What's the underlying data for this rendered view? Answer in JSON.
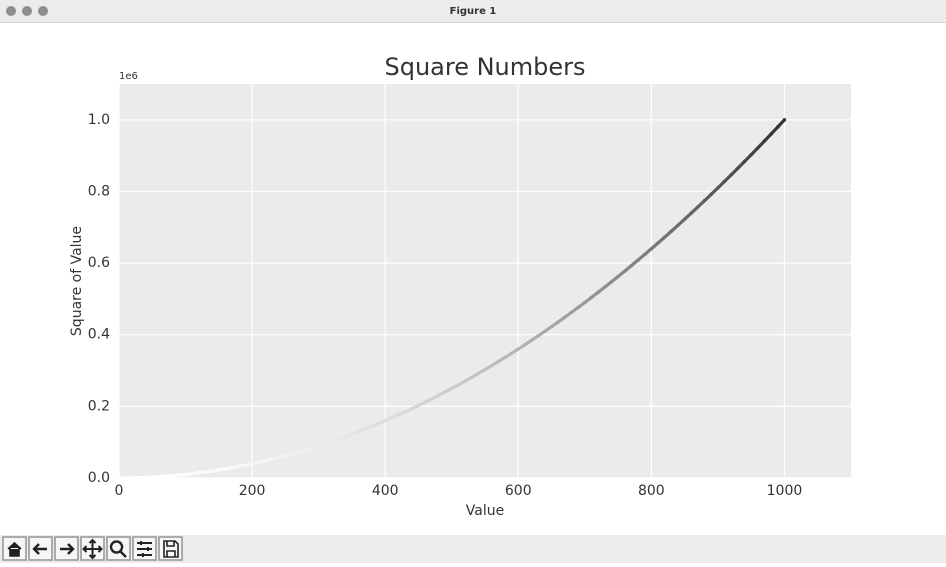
{
  "window": {
    "title": "Figure 1"
  },
  "chart_data": {
    "type": "scatter",
    "title": "Square Numbers",
    "xlabel": "Value",
    "ylabel": "Square of Value",
    "y_offset_label": "1e6",
    "colormap": "Greys",
    "grid": true,
    "xlim": [
      0,
      1100
    ],
    "xticks": [
      0,
      200,
      400,
      600,
      800,
      1000
    ],
    "ylim": [
      0,
      1100000
    ],
    "yticks": [
      {
        "value": 0,
        "label": "0.0"
      },
      {
        "value": 200000,
        "label": "0.2"
      },
      {
        "value": 400000,
        "label": "0.4"
      },
      {
        "value": 600000,
        "label": "0.6"
      },
      {
        "value": 800000,
        "label": "0.8"
      },
      {
        "value": 1000000,
        "label": "1.0"
      }
    ],
    "x": [
      0,
      10,
      20,
      30,
      40,
      50,
      60,
      70,
      80,
      90,
      100,
      110,
      120,
      130,
      140,
      150,
      160,
      170,
      180,
      190,
      200,
      210,
      220,
      230,
      240,
      250,
      260,
      270,
      280,
      290,
      300,
      310,
      320,
      330,
      340,
      350,
      360,
      370,
      380,
      390,
      400,
      410,
      420,
      430,
      440,
      450,
      460,
      470,
      480,
      490,
      500,
      510,
      520,
      530,
      540,
      550,
      560,
      570,
      580,
      590,
      600,
      610,
      620,
      630,
      640,
      650,
      660,
      670,
      680,
      690,
      700,
      710,
      720,
      730,
      740,
      750,
      760,
      770,
      780,
      790,
      800,
      810,
      820,
      830,
      840,
      850,
      860,
      870,
      880,
      890,
      900,
      910,
      920,
      930,
      940,
      950,
      960,
      970,
      980,
      990,
      1000
    ],
    "values": [
      0,
      100,
      400,
      900,
      1600,
      2500,
      3600,
      4900,
      6400,
      8100,
      10000,
      12100,
      14400,
      16900,
      19600,
      22500,
      25600,
      28900,
      32400,
      36100,
      40000,
      44100,
      48400,
      52900,
      57600,
      62500,
      67600,
      72900,
      78400,
      84100,
      90000,
      96100,
      102400,
      108900,
      115600,
      122500,
      129600,
      136900,
      144400,
      152100,
      160000,
      168100,
      176400,
      184900,
      193600,
      202500,
      211600,
      220900,
      230400,
      240100,
      250000,
      260100,
      270400,
      280900,
      291600,
      302500,
      313600,
      324900,
      336400,
      348100,
      360000,
      372100,
      384400,
      396900,
      409600,
      422500,
      435600,
      448900,
      462400,
      476100,
      490000,
      504100,
      518400,
      532900,
      547600,
      562500,
      577600,
      592900,
      608400,
      624100,
      640000,
      656100,
      672400,
      688900,
      705600,
      722500,
      739600,
      756900,
      774400,
      792100,
      810000,
      828100,
      846400,
      864900,
      883600,
      902500,
      921600,
      940900,
      960400,
      980100,
      1000000
    ]
  }
}
